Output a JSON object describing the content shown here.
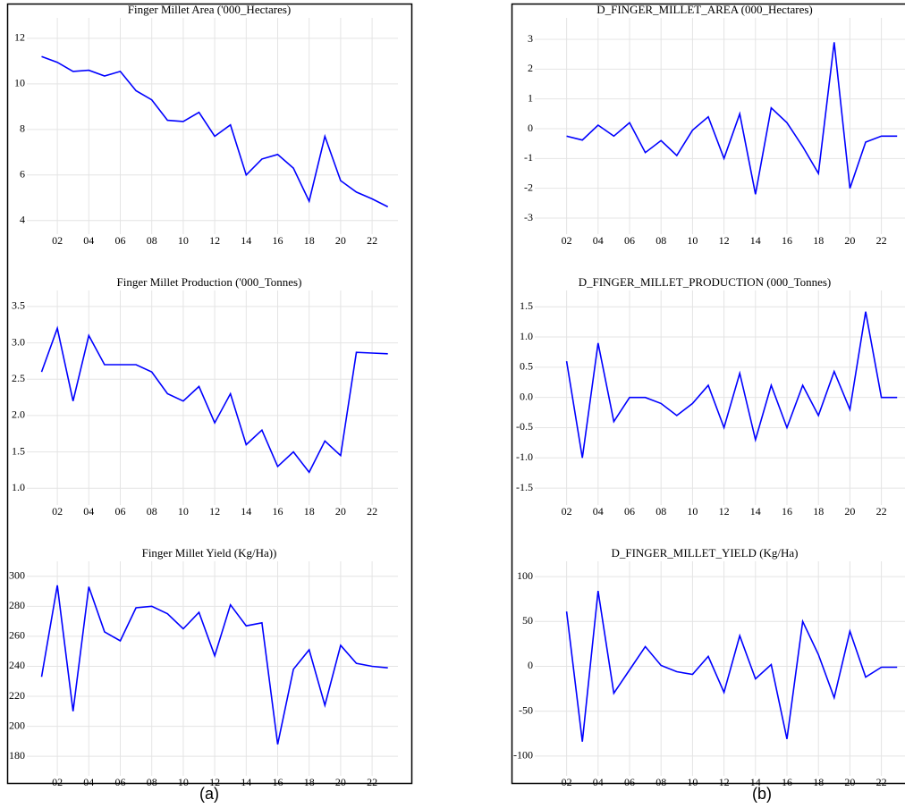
{
  "captions": [
    "(a)",
    "(b)"
  ],
  "chart_data": [
    {
      "type": "line",
      "title": "Finger Millet Area ('000_Hectares)",
      "categories": [
        null,
        "02",
        null,
        "04",
        null,
        "06",
        null,
        "08",
        null,
        "10",
        null,
        "12",
        null,
        "14",
        null,
        "16",
        null,
        "18",
        null,
        "20",
        null,
        "22",
        null
      ],
      "series": [
        {
          "color": "#0000ff",
          "values": [
            11.2,
            10.95,
            10.55,
            10.6,
            10.35,
            10.55,
            9.7,
            9.3,
            8.4,
            8.35,
            8.75,
            7.7,
            8.2,
            6.0,
            6.7,
            6.9,
            6.3,
            4.85,
            7.7,
            5.75,
            5.25,
            4.95,
            4.6
          ]
        }
      ],
      "ylim": [
        3.4,
        12.9
      ],
      "yticks": [
        4,
        6,
        8,
        10,
        12
      ],
      "grid": true
    },
    {
      "type": "line",
      "title": "Finger Millet Production ('000_Tonnes)",
      "categories": [
        null,
        "02",
        null,
        "04",
        null,
        "06",
        null,
        "08",
        null,
        "10",
        null,
        "12",
        null,
        "14",
        null,
        "16",
        null,
        "18",
        null,
        "20",
        null,
        "22",
        null
      ],
      "series": [
        {
          "color": "#0000ff",
          "values": [
            2.6,
            3.2,
            2.2,
            3.1,
            2.7,
            2.7,
            2.7,
            2.6,
            2.3,
            2.2,
            2.4,
            1.9,
            2.3,
            1.6,
            1.8,
            1.3,
            1.5,
            1.22,
            1.65,
            1.45,
            2.87,
            2.86,
            2.85
          ]
        }
      ],
      "ylim": [
        0.77,
        3.72
      ],
      "yticks": [
        {
          "value": 1,
          "label": "1.0"
        },
        1.5,
        {
          "value": 2,
          "label": "2.0"
        },
        2.5,
        {
          "value": 3,
          "label": "3.0"
        },
        3.5
      ],
      "grid": true
    },
    {
      "type": "line",
      "title": "Finger Millet Yield (Kg/Ha))",
      "categories": [
        null,
        "02",
        null,
        "04",
        null,
        "06",
        null,
        "08",
        null,
        "10",
        null,
        "12",
        null,
        "14",
        null,
        "16",
        null,
        "18",
        null,
        "20",
        null,
        "22",
        null
      ],
      "series": [
        {
          "color": "#0000ff",
          "values": [
            233,
            294,
            210,
            293,
            263,
            257,
            279,
            280,
            275,
            265,
            276,
            247,
            281,
            267,
            269,
            188,
            238,
            251,
            214,
            254,
            242,
            240,
            239
          ]
        }
      ],
      "ylim": [
        167,
        310
      ],
      "yticks": [
        180,
        200,
        220,
        240,
        260,
        280,
        300
      ],
      "grid": true
    },
    {
      "type": "line",
      "title": "D_FINGER_MILLET_AREA (000_Hectares)",
      "categories": [
        null,
        "02",
        null,
        "04",
        null,
        "06",
        null,
        "08",
        null,
        "10",
        null,
        "12",
        null,
        "14",
        null,
        "16",
        null,
        "18",
        null,
        "20",
        null,
        "22",
        null
      ],
      "series": [
        {
          "color": "#0000ff",
          "values": [
            null,
            -0.25,
            -0.38,
            0.12,
            -0.25,
            0.2,
            -0.8,
            -0.4,
            -0.9,
            -0.05,
            0.4,
            -1.0,
            0.5,
            -2.2,
            0.7,
            0.2,
            -0.6,
            -1.5,
            2.9,
            -2.0,
            -0.45,
            -0.25,
            -0.25
          ]
        }
      ],
      "ylim": [
        -3.54,
        3.72
      ],
      "yticks": [
        -3,
        -2,
        -1,
        0,
        1,
        2,
        3
      ],
      "grid": true
    },
    {
      "type": "line",
      "title": "D_FINGER_MILLET_PRODUCTION (000_Tonnes)",
      "categories": [
        null,
        "02",
        null,
        "04",
        null,
        "06",
        null,
        "08",
        null,
        "10",
        null,
        "12",
        null,
        "14",
        null,
        "16",
        null,
        "18",
        null,
        "20",
        null,
        "22",
        null
      ],
      "series": [
        {
          "color": "#0000ff",
          "values": [
            null,
            0.6,
            -1.0,
            0.9,
            -0.4,
            0.0,
            0.0,
            -0.1,
            -0.3,
            -0.1,
            0.2,
            -0.5,
            0.4,
            -0.7,
            0.2,
            -0.5,
            0.2,
            -0.3,
            0.43,
            -0.2,
            1.42,
            0.0,
            0.0
          ]
        }
      ],
      "ylim": [
        -1.78,
        1.77
      ],
      "yticks": [
        {
          "value": -1.5,
          "label": "-1.5"
        },
        {
          "value": -1,
          "label": "-1.0"
        },
        {
          "value": -0.5,
          "label": "-0.5"
        },
        {
          "value": 0,
          "label": "0.0"
        },
        0.5,
        {
          "value": 1,
          "label": "1.0"
        },
        1.5
      ],
      "grid": true
    },
    {
      "type": "line",
      "title": "D_FINGER_MILLET_YIELD (Kg/Ha)",
      "categories": [
        null,
        "02",
        null,
        "04",
        null,
        "06",
        null,
        "08",
        null,
        "10",
        null,
        "12",
        null,
        "14",
        null,
        "16",
        null,
        "18",
        null,
        "20",
        null,
        "22",
        null
      ],
      "series": [
        {
          "color": "#0000ff",
          "values": [
            null,
            61,
            -84,
            84,
            -30,
            -4,
            22,
            1,
            -6,
            -9,
            11,
            -29,
            34,
            -14,
            2,
            -81,
            50,
            13,
            -35,
            39,
            -12,
            -1,
            -1
          ]
        }
      ],
      "ylim": [
        -122,
        117
      ],
      "yticks": [
        -100,
        -50,
        0,
        50,
        100
      ],
      "grid": true
    }
  ]
}
